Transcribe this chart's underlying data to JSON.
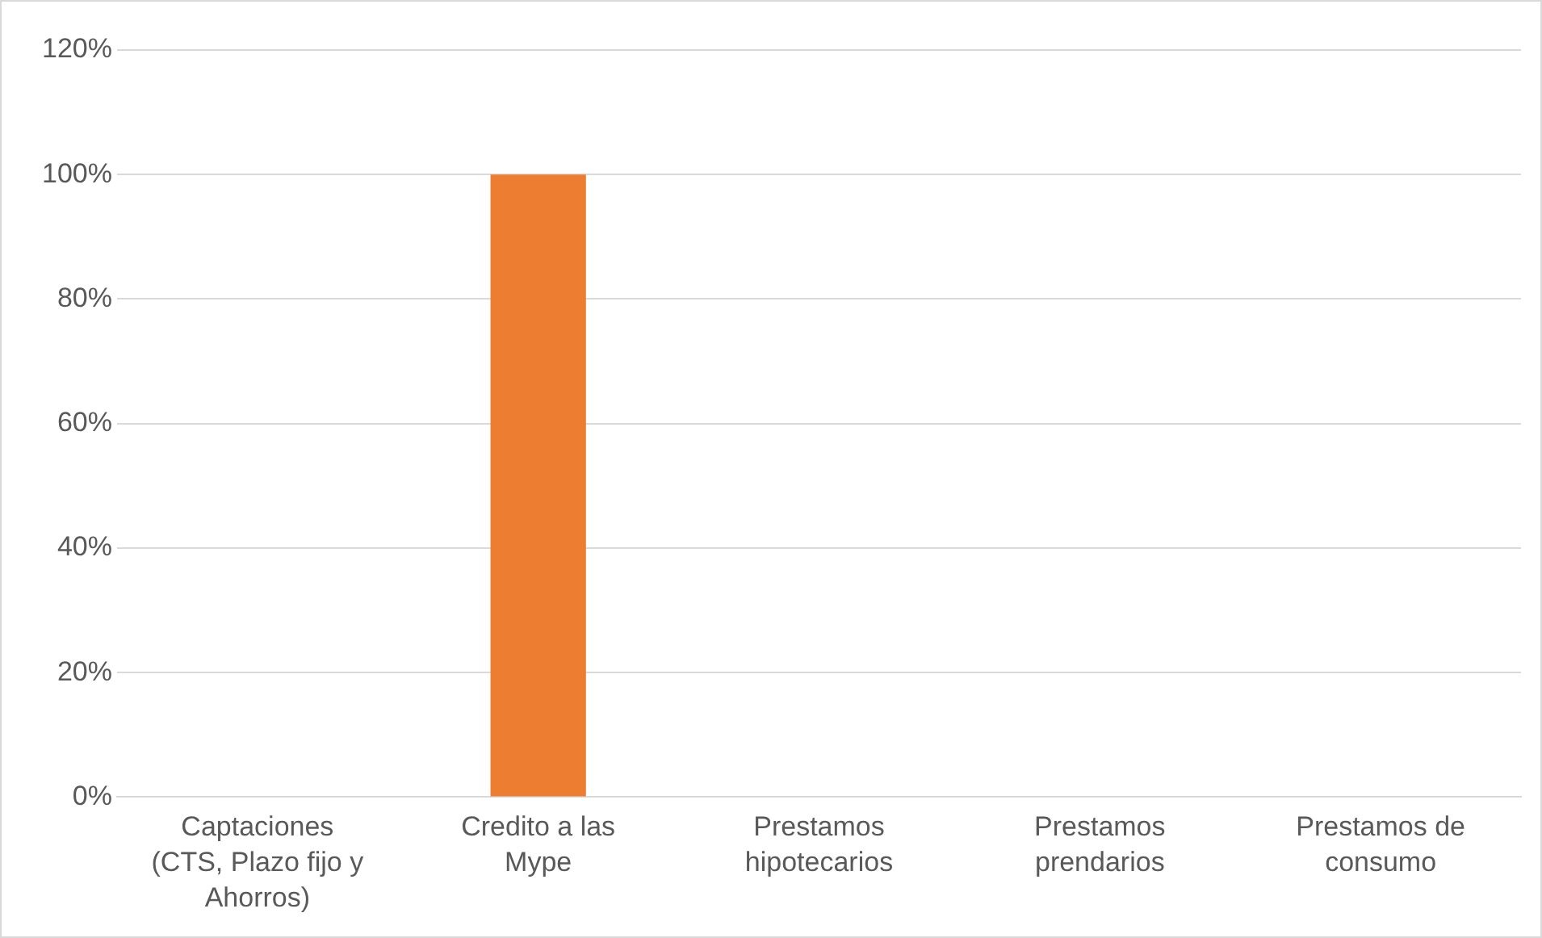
{
  "chart_data": {
    "type": "bar",
    "categories": [
      "Captaciones (CTS, Plazo fijo y Ahorros)",
      "Credito a las Mype",
      "Prestamos hipotecarios",
      "Prestamos prendarios",
      "Prestamos de consumo"
    ],
    "values": [
      0,
      100,
      0,
      0,
      0
    ],
    "color": "#ed7d31",
    "ylim": [
      0,
      120
    ],
    "yticks": [
      {
        "value": 0,
        "label": "0%"
      },
      {
        "value": 20,
        "label": "20%"
      },
      {
        "value": 40,
        "label": "40%"
      },
      {
        "value": 60,
        "label": "60%"
      },
      {
        "value": 80,
        "label": "80%"
      },
      {
        "value": 100,
        "label": "100%"
      },
      {
        "value": 120,
        "label": "120%"
      }
    ],
    "grid": "y",
    "legend": false
  }
}
